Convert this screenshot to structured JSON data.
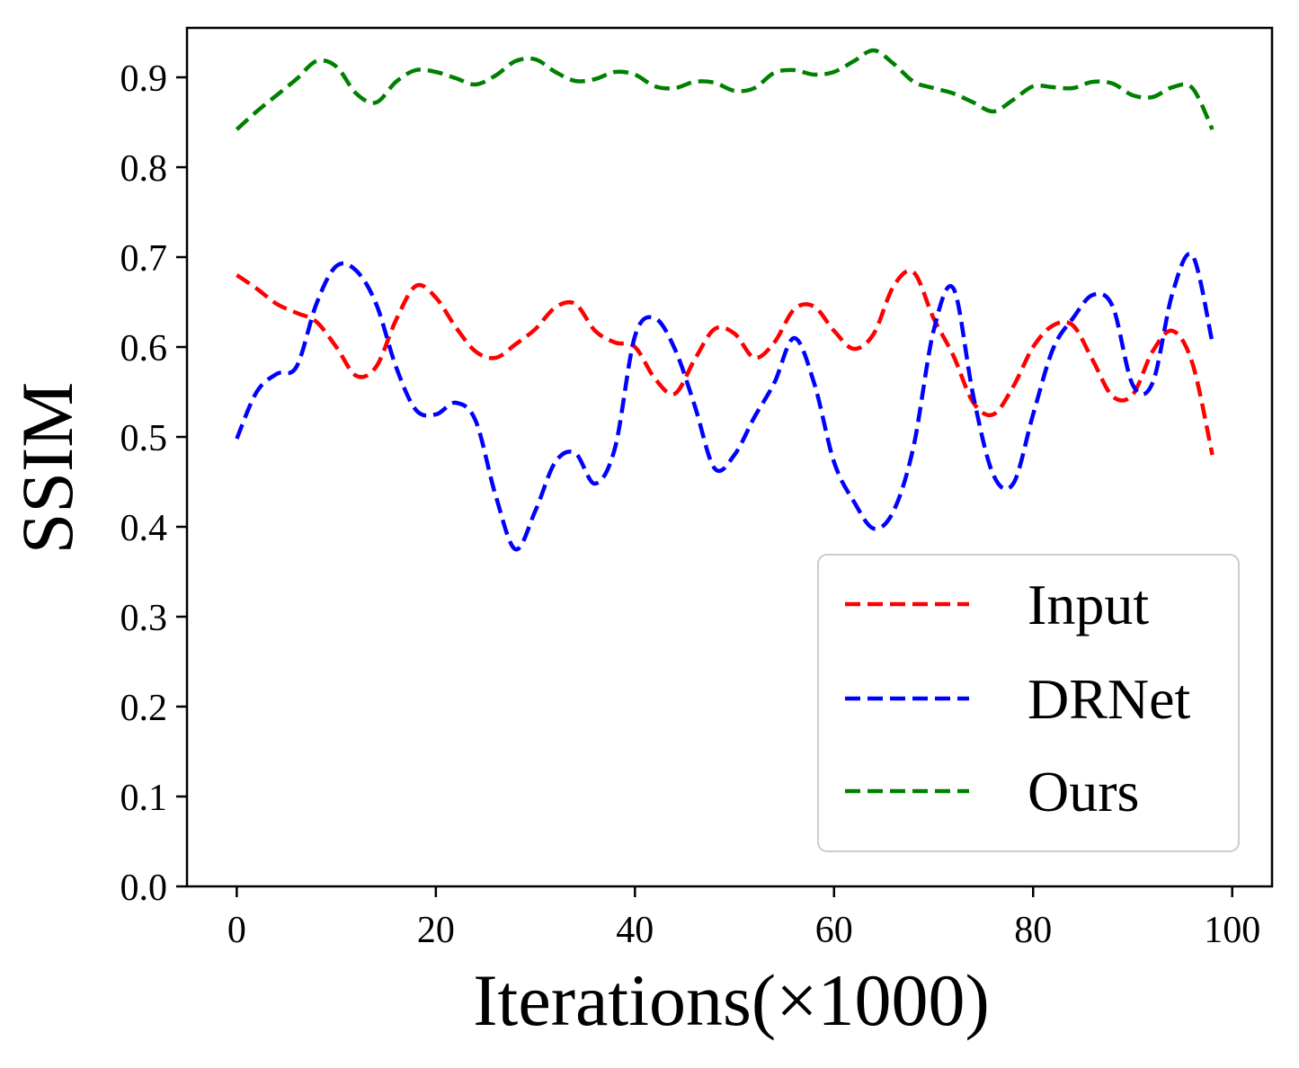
{
  "chart_data": {
    "type": "line",
    "title": "",
    "xlabel": "Iterations(×1000)",
    "ylabel": "SSIM",
    "xlim": [
      -5,
      104
    ],
    "ylim": [
      0.0,
      0.955
    ],
    "xticks": [
      0,
      20,
      40,
      60,
      80,
      100
    ],
    "xtick_labels": [
      "0",
      "20",
      "40",
      "60",
      "80",
      "100"
    ],
    "yticks": [
      0.0,
      0.1,
      0.2,
      0.3,
      0.4,
      0.5,
      0.6,
      0.7,
      0.8,
      0.9
    ],
    "ytick_labels": [
      "0.0",
      "0.1",
      "0.2",
      "0.3",
      "0.4",
      "0.5",
      "0.6",
      "0.7",
      "0.8",
      "0.9"
    ],
    "grid": false,
    "legend_position": "lower-right",
    "line_style": "dashed",
    "series": [
      {
        "name": "Input",
        "color": "#ff0000",
        "x": [
          0,
          2,
          4,
          6,
          8,
          10,
          12,
          14,
          16,
          18,
          20,
          22,
          24,
          26,
          28,
          30,
          32,
          34,
          36,
          38,
          40,
          42,
          44,
          46,
          48,
          50,
          52,
          54,
          56,
          58,
          60,
          62,
          64,
          66,
          68,
          70,
          72,
          74,
          76,
          78,
          80,
          82,
          84,
          86,
          88,
          90,
          92,
          94,
          96,
          98
        ],
        "y": [
          0.68,
          0.665,
          0.648,
          0.638,
          0.628,
          0.6,
          0.568,
          0.578,
          0.63,
          0.668,
          0.655,
          0.622,
          0.595,
          0.588,
          0.603,
          0.62,
          0.644,
          0.648,
          0.618,
          0.605,
          0.6,
          0.565,
          0.548,
          0.586,
          0.62,
          0.615,
          0.588,
          0.605,
          0.642,
          0.645,
          0.618,
          0.598,
          0.615,
          0.668,
          0.683,
          0.632,
          0.59,
          0.538,
          0.525,
          0.556,
          0.6,
          0.624,
          0.624,
          0.585,
          0.545,
          0.547,
          0.595,
          0.618,
          0.582,
          0.48
        ]
      },
      {
        "name": "DRNet",
        "color": "#0000ff",
        "x": [
          0,
          2,
          4,
          6,
          8,
          10,
          12,
          14,
          16,
          18,
          20,
          22,
          24,
          26,
          28,
          30,
          32,
          34,
          36,
          38,
          40,
          42,
          44,
          46,
          48,
          50,
          52,
          54,
          56,
          58,
          60,
          62,
          64,
          66,
          68,
          70,
          72,
          74,
          76,
          78,
          80,
          82,
          84,
          86,
          88,
          90,
          92,
          94,
          96,
          98
        ],
        "y": [
          0.498,
          0.55,
          0.57,
          0.578,
          0.648,
          0.69,
          0.685,
          0.648,
          0.578,
          0.53,
          0.525,
          0.538,
          0.518,
          0.435,
          0.375,
          0.418,
          0.472,
          0.482,
          0.448,
          0.488,
          0.612,
          0.632,
          0.598,
          0.535,
          0.465,
          0.48,
          0.522,
          0.56,
          0.61,
          0.56,
          0.472,
          0.428,
          0.398,
          0.418,
          0.49,
          0.618,
          0.665,
          0.545,
          0.458,
          0.448,
          0.525,
          0.598,
          0.632,
          0.658,
          0.645,
          0.558,
          0.56,
          0.66,
          0.702,
          0.605
        ]
      },
      {
        "name": "Ours",
        "color": "#008000",
        "x": [
          0,
          2,
          4,
          6,
          8,
          10,
          12,
          14,
          16,
          18,
          20,
          22,
          24,
          26,
          28,
          30,
          32,
          34,
          36,
          38,
          40,
          42,
          44,
          46,
          48,
          50,
          52,
          54,
          56,
          58,
          60,
          62,
          64,
          66,
          68,
          70,
          72,
          74,
          76,
          78,
          80,
          82,
          84,
          86,
          88,
          90,
          92,
          94,
          96,
          98
        ],
        "y": [
          0.842,
          0.862,
          0.88,
          0.898,
          0.918,
          0.912,
          0.882,
          0.872,
          0.895,
          0.908,
          0.906,
          0.899,
          0.892,
          0.902,
          0.918,
          0.92,
          0.906,
          0.896,
          0.898,
          0.906,
          0.903,
          0.89,
          0.888,
          0.895,
          0.894,
          0.885,
          0.888,
          0.905,
          0.908,
          0.903,
          0.906,
          0.918,
          0.93,
          0.915,
          0.895,
          0.888,
          0.882,
          0.872,
          0.862,
          0.875,
          0.89,
          0.889,
          0.888,
          0.895,
          0.893,
          0.88,
          0.878,
          0.889,
          0.888,
          0.842
        ]
      }
    ]
  }
}
